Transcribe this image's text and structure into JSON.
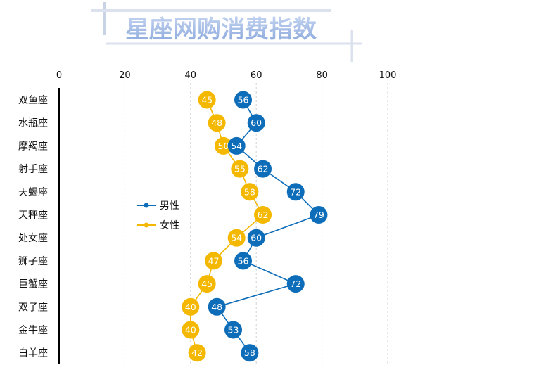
{
  "chart_data": {
    "type": "line",
    "title": "星座网购消费指数",
    "categories": [
      "双鱼座",
      "水瓶座",
      "摩羯座",
      "射手座",
      "天蝎座",
      "天秤座",
      "处女座",
      "狮子座",
      "巨蟹座",
      "双子座",
      "金牛座",
      "白羊座"
    ],
    "series": [
      {
        "name": "男性",
        "color": "#0E6DB8",
        "values": [
          56,
          60,
          54,
          62,
          72,
          79,
          60,
          56,
          72,
          48,
          53,
          58
        ]
      },
      {
        "name": "女性",
        "color": "#F5B800",
        "values": [
          45,
          48,
          50,
          55,
          58,
          62,
          54,
          47,
          45,
          40,
          40,
          42
        ]
      }
    ],
    "x_ticks": [
      0,
      20,
      40,
      60,
      80,
      100
    ],
    "xlim": [
      0,
      100
    ],
    "orientation": "horizontal-values",
    "grid": "vertical-dashed",
    "legend_position": "left-middle"
  }
}
